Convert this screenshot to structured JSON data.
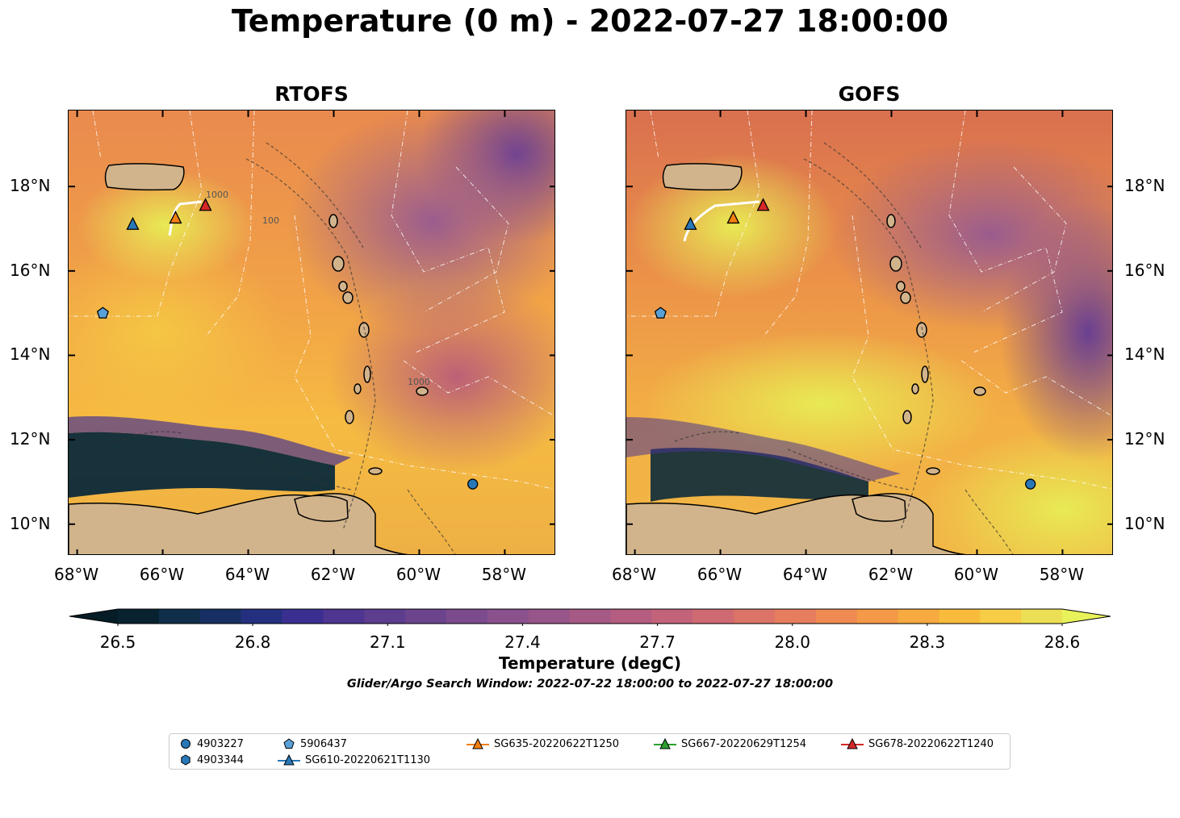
{
  "title": "Temperature (0 m) - 2022-07-27 18:00:00",
  "panels": [
    {
      "title": "RTOFS"
    },
    {
      "title": "GOFS"
    }
  ],
  "axes": {
    "x_ticks": [
      "68°W",
      "66°W",
      "64°W",
      "62°W",
      "60°W",
      "58°W"
    ],
    "y_ticks": [
      "18°N",
      "16°N",
      "14°N",
      "12°N",
      "10°N"
    ]
  },
  "colorbar": {
    "label": "Temperature (degC)",
    "ticks": [
      "26.5",
      "26.8",
      "27.1",
      "27.4",
      "27.7",
      "28.0",
      "28.3",
      "28.6"
    ],
    "colors": [
      "#08232f",
      "#0f2e4a",
      "#172f63",
      "#24307f",
      "#3a2f91",
      "#4d3590",
      "#5d3d8e",
      "#6c448e",
      "#7b4b8e",
      "#8a518d",
      "#985589",
      "#a65985",
      "#b45d80",
      "#c2637a",
      "#cf6a72",
      "#db7368",
      "#e67d5e",
      "#ee8a52",
      "#f39947",
      "#f6aa3f",
      "#f8bb3b",
      "#f6cd45",
      "#ecdf55"
    ],
    "extend_low_color": "#061c26",
    "extend_high_color": "#e8f25a"
  },
  "search_window": "Glider/Argo Search Window: 2022-07-22 18:00:00 to 2022-07-27 18:00:00",
  "legend": [
    {
      "label": "4903227",
      "marker": "circle",
      "color": "#2878b8"
    },
    {
      "label": "4903344",
      "marker": "hexagon",
      "color": "#2878b8"
    },
    {
      "label": "5906437",
      "marker": "pentagon",
      "color": "#5aa0d6"
    },
    {
      "label": "SG610-20220621T1130",
      "marker": "triangle",
      "color": "#2878b8"
    },
    {
      "label": "SG635-20220622T1250",
      "marker": "triangle",
      "color": "#f27f12"
    },
    {
      "label": "SG667-20220629T1254",
      "marker": "triangle",
      "color": "#2ca02c"
    },
    {
      "label": "SG678-20220622T1240",
      "marker": "triangle",
      "color": "#d62728"
    }
  ],
  "map_extent": {
    "lon": [
      -68.2,
      -56.8
    ],
    "lat": [
      9.25,
      19.8
    ]
  },
  "markers": [
    {
      "id": "4903227",
      "lon": -58.75,
      "lat": 10.95,
      "shape": "circle",
      "color": "#2878b8"
    },
    {
      "id": "5906437",
      "lon": -67.4,
      "lat": 15.0,
      "shape": "pentagon",
      "color": "#5aa0d6"
    },
    {
      "id": "SG610-20220621T1130",
      "lon": -66.7,
      "lat": 17.1,
      "shape": "triangle",
      "color": "#2878b8"
    },
    {
      "id": "SG635-20220622T1250",
      "lon": -65.7,
      "lat": 17.25,
      "shape": "triangle",
      "color": "#f27f12"
    },
    {
      "id": "SG678-20220622T1240",
      "lon": -65.0,
      "lat": 17.55,
      "shape": "triangle",
      "color": "#d62728"
    }
  ],
  "contour_labels": [
    "1000",
    "1000",
    "100"
  ]
}
